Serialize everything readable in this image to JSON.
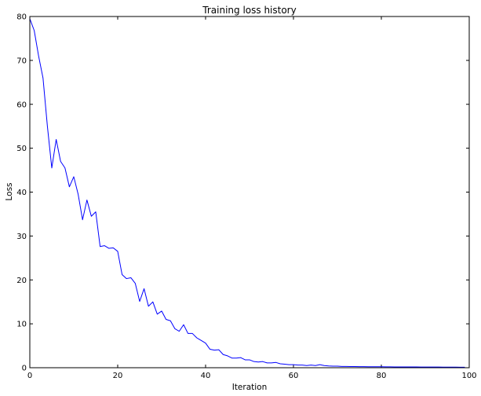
{
  "chart_data": {
    "type": "line",
    "title": "Training loss history",
    "xlabel": "Iteration",
    "ylabel": "Loss",
    "xlim": [
      0,
      100
    ],
    "ylim": [
      0,
      80
    ],
    "xticks": [
      0,
      20,
      40,
      60,
      80,
      100
    ],
    "yticks": [
      0,
      10,
      20,
      30,
      40,
      50,
      60,
      70,
      80
    ],
    "grid": false,
    "line_color": "#0000ff",
    "series": [
      {
        "x": [
          0,
          1,
          2,
          3,
          4,
          5,
          6,
          7,
          8,
          9,
          10,
          11,
          12,
          13,
          14,
          15,
          16,
          17,
          18,
          19,
          20,
          21,
          22,
          23,
          24,
          25,
          26,
          27,
          28,
          29,
          30,
          31,
          32,
          33,
          34,
          35,
          36,
          37,
          38,
          39,
          40,
          41,
          42,
          43,
          44,
          45,
          46,
          47,
          48,
          49,
          50,
          51,
          52,
          53,
          54,
          55,
          56,
          57,
          58,
          59,
          60,
          61,
          62,
          63,
          64,
          65,
          66,
          67,
          68,
          69,
          70,
          71,
          72,
          73,
          74,
          75,
          76,
          77,
          78,
          79,
          80,
          81,
          82,
          83,
          84,
          85,
          86,
          87,
          88,
          89,
          90,
          91,
          92,
          93,
          94,
          95,
          96,
          97,
          98,
          99
        ],
        "values": [
          79.5,
          76.8,
          71,
          66,
          55,
          45.5,
          52,
          47,
          45.5,
          41.2,
          43.5,
          39.5,
          33.7,
          38.2,
          34.5,
          35.5,
          27.6,
          27.8,
          27.2,
          27.3,
          26.5,
          21.2,
          20.3,
          20.5,
          19.2,
          15.1,
          18,
          14,
          15,
          12.2,
          12.9,
          11,
          10.7,
          8.9,
          8.3,
          9.8,
          7.8,
          7.8,
          6.8,
          6.2,
          5.6,
          4.2,
          4,
          4.1,
          3,
          2.7,
          2.2,
          2.2,
          2.3,
          1.8,
          1.8,
          1.4,
          1.3,
          1.4,
          1.1,
          1.1,
          1.2,
          0.9,
          0.8,
          0.7,
          0.7,
          0.6,
          0.6,
          0.5,
          0.6,
          0.5,
          0.7,
          0.5,
          0.4,
          0.35,
          0.35,
          0.3,
          0.3,
          0.28,
          0.28,
          0.25,
          0.25,
          0.23,
          0.23,
          0.22,
          0.22,
          0.2,
          0.2,
          0.19,
          0.19,
          0.18,
          0.18,
          0.17,
          0.17,
          0.16,
          0.16,
          0.15,
          0.15,
          0.15,
          0.14,
          0.14,
          0.13,
          0.13,
          0.12,
          0.12
        ]
      }
    ]
  }
}
